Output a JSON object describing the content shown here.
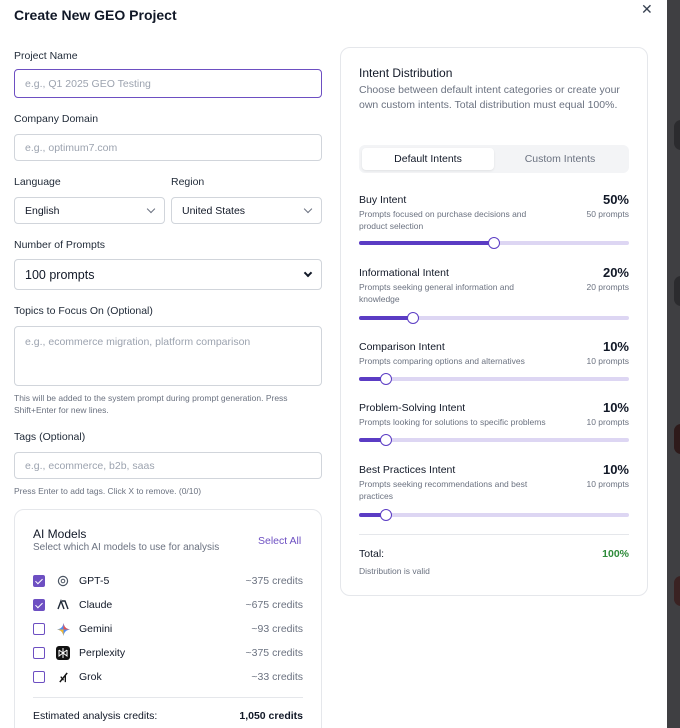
{
  "modal": {
    "title": "Create New GEO Project"
  },
  "form": {
    "project_name": {
      "label": "Project Name",
      "placeholder": "e.g., Q1 2025 GEO Testing"
    },
    "company_domain": {
      "label": "Company Domain",
      "placeholder": "e.g., optimum7.com"
    },
    "language": {
      "label": "Language",
      "value": "English"
    },
    "region": {
      "label": "Region",
      "value": "United States"
    },
    "num_prompts": {
      "label": "Number of Prompts",
      "value": "100 prompts"
    },
    "topics": {
      "label": "Topics to Focus On (Optional)",
      "placeholder": "e.g., ecommerce migration, platform comparison",
      "hint": "This will be added to the system prompt during prompt generation. Press Shift+Enter for new lines."
    },
    "tags": {
      "label": "Tags (Optional)",
      "placeholder": "e.g., ecommerce, b2b, saas",
      "hint": "Press Enter to add tags. Click X to remove. (0/10)"
    }
  },
  "ai_models": {
    "title": "AI Models",
    "subtitle": "Select which AI models to use for analysis",
    "select_all": "Select All",
    "models": [
      {
        "name": "GPT-5",
        "credits": "~375 credits",
        "checked": true,
        "icon": "openai-icon"
      },
      {
        "name": "Claude",
        "credits": "~675 credits",
        "checked": true,
        "icon": "anthropic-icon"
      },
      {
        "name": "Gemini",
        "credits": "~93 credits",
        "checked": false,
        "icon": "gemini-icon"
      },
      {
        "name": "Perplexity",
        "credits": "~375 credits",
        "checked": false,
        "icon": "perplexity-icon"
      },
      {
        "name": "Grok",
        "credits": "~33 credits",
        "checked": false,
        "icon": "grok-icon"
      }
    ],
    "estimated_label": "Estimated analysis credits:",
    "estimated_value": "1,050 credits"
  },
  "intent_distribution": {
    "title": "Intent Distribution",
    "description": "Choose between default intent categories or create your own custom intents. Total distribution must equal 100%.",
    "tabs": {
      "default": "Default Intents",
      "custom": "Custom Intents",
      "active": "default"
    },
    "intents": [
      {
        "name": "Buy Intent",
        "desc": "Prompts focused on purchase decisions and product selection",
        "percent": "50%",
        "value": 50,
        "count": "50 prompts"
      },
      {
        "name": "Informational Intent",
        "desc": "Prompts seeking general information and knowledge",
        "percent": "20%",
        "value": 20,
        "count": "20 prompts"
      },
      {
        "name": "Comparison Intent",
        "desc": "Prompts comparing options and alternatives",
        "percent": "10%",
        "value": 10,
        "count": "10 prompts"
      },
      {
        "name": "Problem-Solving Intent",
        "desc": "Prompts looking for solutions to specific problems",
        "percent": "10%",
        "value": 10,
        "count": "10 prompts"
      },
      {
        "name": "Best Practices Intent",
        "desc": "Prompts seeking recommendations and best practices",
        "percent": "10%",
        "value": 10,
        "count": "10 prompts"
      }
    ],
    "total_label": "Total:",
    "total_value": "100%",
    "status": "Distribution is valid"
  },
  "colors": {
    "accent": "#5b3cc4",
    "valid": "#2e8b3a"
  }
}
